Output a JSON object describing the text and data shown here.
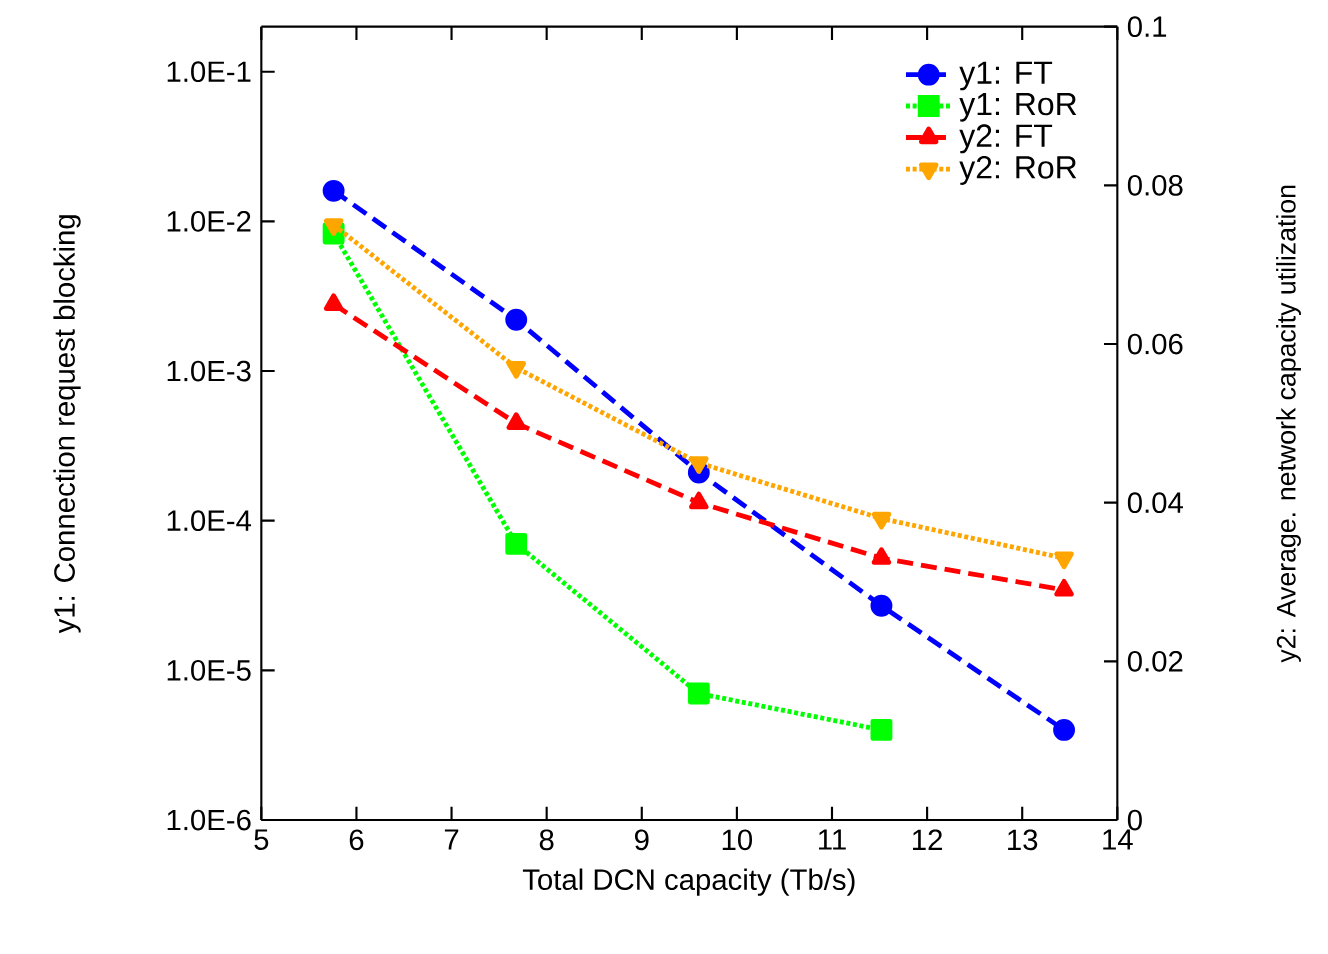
{
  "chart_data": {
    "type": "line",
    "xlabel": "Total DCN capacity (Tb/s)",
    "ylabel": "y1: Connection request blocking",
    "y2label": "y2: Average. network capacity utilization",
    "x": [
      5.76,
      7.68,
      9.6,
      11.52,
      13.44
    ],
    "xlim": [
      5,
      14
    ],
    "xticks": [
      5,
      6,
      7,
      8,
      9,
      10,
      11,
      12,
      13,
      14
    ],
    "log": "y",
    "ylim": [
      1e-06,
      0.2
    ],
    "yticks": [
      {
        "value": 1e-06,
        "label": "1.0E-6"
      },
      {
        "value": 1e-05,
        "label": "1.0E-5"
      },
      {
        "value": 0.0001,
        "label": "1.0E-4"
      },
      {
        "value": 0.001,
        "label": "1.0E-3"
      },
      {
        "value": 0.01,
        "label": "1.0E-2"
      },
      {
        "value": 0.1,
        "label": "1.0E-1"
      }
    ],
    "y2lim": [
      0,
      0.1
    ],
    "y2ticks": [
      0,
      0.02,
      0.04,
      0.06,
      0.08,
      0.1
    ],
    "legend": "top right",
    "grid": false,
    "series": [
      {
        "name": "y1: FT",
        "color": "#0000ff",
        "marker": "circle",
        "line_style": "dashed",
        "values": [
          0.016,
          0.0022,
          0.00021,
          2.7e-05,
          4e-06
        ]
      },
      {
        "name": "y1: RoR",
        "color": "#00ff00",
        "marker": "square",
        "line_style": "dotted",
        "values": [
          0.0083,
          7e-05,
          7e-06,
          4e-06,
          null
        ]
      },
      {
        "name": "y2: FT",
        "color": "#ff0000",
        "marker": "triangle",
        "line_style": "dashed",
        "axis": "y2",
        "values": [
          0.065,
          0.05,
          0.04,
          0.033,
          0.029
        ]
      },
      {
        "name": "y2: RoR",
        "color": "#ffa500",
        "marker": "triangle-down",
        "line_style": "dotted",
        "axis": "y2",
        "values": [
          0.075,
          0.057,
          0.045,
          0.038,
          0.033
        ]
      }
    ]
  }
}
